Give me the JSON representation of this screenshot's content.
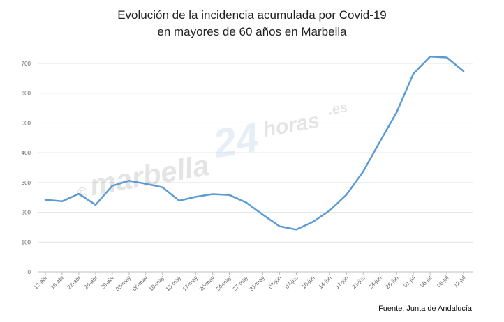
{
  "chart_data": {
    "type": "line",
    "title_line1": "Evolución de la incidencia acumulada por Covid-19",
    "title_line2": "en mayores de 60 años en Marbella",
    "xlabel": "",
    "ylabel": "",
    "ylim": [
      0,
      700
    ],
    "yticks": [
      0,
      100,
      200,
      300,
      400,
      500,
      600,
      700
    ],
    "grid": true,
    "color": "#5b9bd5",
    "categories": [
      "12-abr",
      "19-abr",
      "22-abr",
      "26-abr",
      "29-abr",
      "03-may",
      "06-may",
      "10-may",
      "13-may",
      "17-may",
      "20-may",
      "24-may",
      "27-may",
      "31-may",
      "03-jun",
      "07-jun",
      "10-jun",
      "14-jun",
      "17-jun",
      "21-jun",
      "24-jun",
      "28-jun",
      "01-jul",
      "05-jul",
      "08-jul",
      "12-jul"
    ],
    "values": [
      242,
      237,
      262,
      225,
      289,
      306,
      296,
      284,
      239,
      252,
      261,
      258,
      233,
      192,
      153,
      142,
      168,
      206,
      259,
      337,
      437,
      536,
      665,
      723,
      720,
      674
    ]
  },
  "source": "Fuente: Junta de Andalucía",
  "watermark": {
    "copyright": "©",
    "brand": "marbella",
    "number": "24",
    "suffix": "horas",
    "tld": ".es"
  }
}
